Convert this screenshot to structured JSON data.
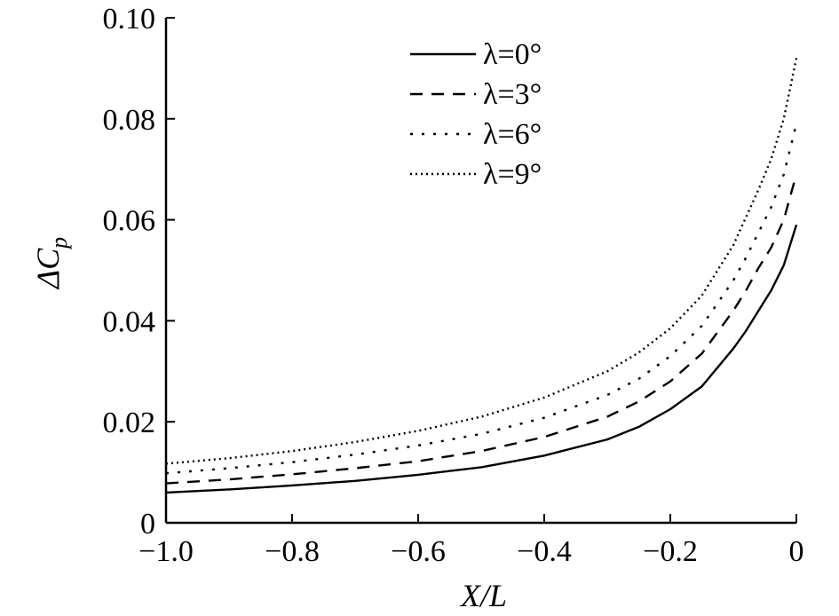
{
  "chart_data": {
    "type": "line",
    "xlabel": "X/L",
    "ylabel": "ΔC_p",
    "xlim": [
      -1.0,
      0
    ],
    "ylim": [
      0,
      0.1
    ],
    "x_ticks": [
      "−1.0",
      "−0.8",
      "−0.6",
      "−0.4",
      "−0.2",
      "0"
    ],
    "y_ticks": [
      "0",
      "0.02",
      "0.04",
      "0.06",
      "0.08",
      "0.10"
    ],
    "legend_position": "top-center",
    "grid": false,
    "x": [
      -1.0,
      -0.9,
      -0.8,
      -0.7,
      -0.6,
      -0.5,
      -0.4,
      -0.3,
      -0.25,
      -0.2,
      -0.15,
      -0.1,
      -0.08,
      -0.06,
      -0.04,
      -0.02,
      0
    ],
    "series": [
      {
        "name": "λ=0°",
        "style": "solid",
        "values": [
          0.006,
          0.0066,
          0.0074,
          0.0083,
          0.0095,
          0.011,
          0.0133,
          0.0165,
          0.019,
          0.0225,
          0.027,
          0.0345,
          0.038,
          0.042,
          0.046,
          0.051,
          0.059
        ]
      },
      {
        "name": "λ=3°",
        "style": "dashed",
        "values": [
          0.0078,
          0.0086,
          0.0096,
          0.0108,
          0.0122,
          0.0142,
          0.017,
          0.021,
          0.024,
          0.028,
          0.0335,
          0.042,
          0.046,
          0.0505,
          0.0545,
          0.06,
          0.069
        ]
      },
      {
        "name": "λ=6°",
        "style": "loose-dotted",
        "values": [
          0.0098,
          0.0108,
          0.012,
          0.0135,
          0.0153,
          0.0176,
          0.0208,
          0.0253,
          0.0285,
          0.033,
          0.039,
          0.048,
          0.0525,
          0.0575,
          0.0625,
          0.069,
          0.079
        ]
      },
      {
        "name": "λ=9°",
        "style": "dotted",
        "values": [
          0.0117,
          0.0128,
          0.0142,
          0.016,
          0.0182,
          0.021,
          0.0248,
          0.03,
          0.0337,
          0.0385,
          0.045,
          0.055,
          0.0605,
          0.066,
          0.072,
          0.08,
          0.092
        ]
      }
    ]
  }
}
